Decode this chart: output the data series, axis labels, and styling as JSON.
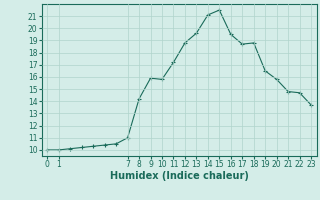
{
  "x": [
    0,
    1,
    2,
    3,
    4,
    5,
    6,
    7,
    8,
    9,
    10,
    11,
    12,
    13,
    14,
    15,
    16,
    17,
    18,
    19,
    20,
    21,
    22,
    23
  ],
  "y": [
    10,
    10,
    10.1,
    10.2,
    10.3,
    10.4,
    10.5,
    11,
    14.2,
    15.9,
    15.8,
    17.2,
    18.8,
    19.6,
    21.1,
    21.5,
    19.5,
    18.7,
    18.8,
    16.5,
    15.8,
    14.8,
    14.7,
    13.7
  ],
  "bg_color": "#d4ede8",
  "grid_color": "#b0d4cc",
  "line_color": "#1a6b5a",
  "marker_color": "#1a6b5a",
  "xlabel": "Humidex (Indice chaleur)",
  "xlabel_fontsize": 7,
  "ylim": [
    9.5,
    22
  ],
  "xlim": [
    -0.5,
    23.5
  ],
  "yticks": [
    10,
    11,
    12,
    13,
    14,
    15,
    16,
    17,
    18,
    19,
    20,
    21
  ],
  "xticks": [
    0,
    1,
    7,
    8,
    9,
    10,
    11,
    12,
    13,
    14,
    15,
    16,
    17,
    18,
    19,
    20,
    21,
    22,
    23
  ],
  "tick_fontsize": 5.5,
  "tick_color": "#1a6b5a",
  "spine_color": "#1a6b5a"
}
